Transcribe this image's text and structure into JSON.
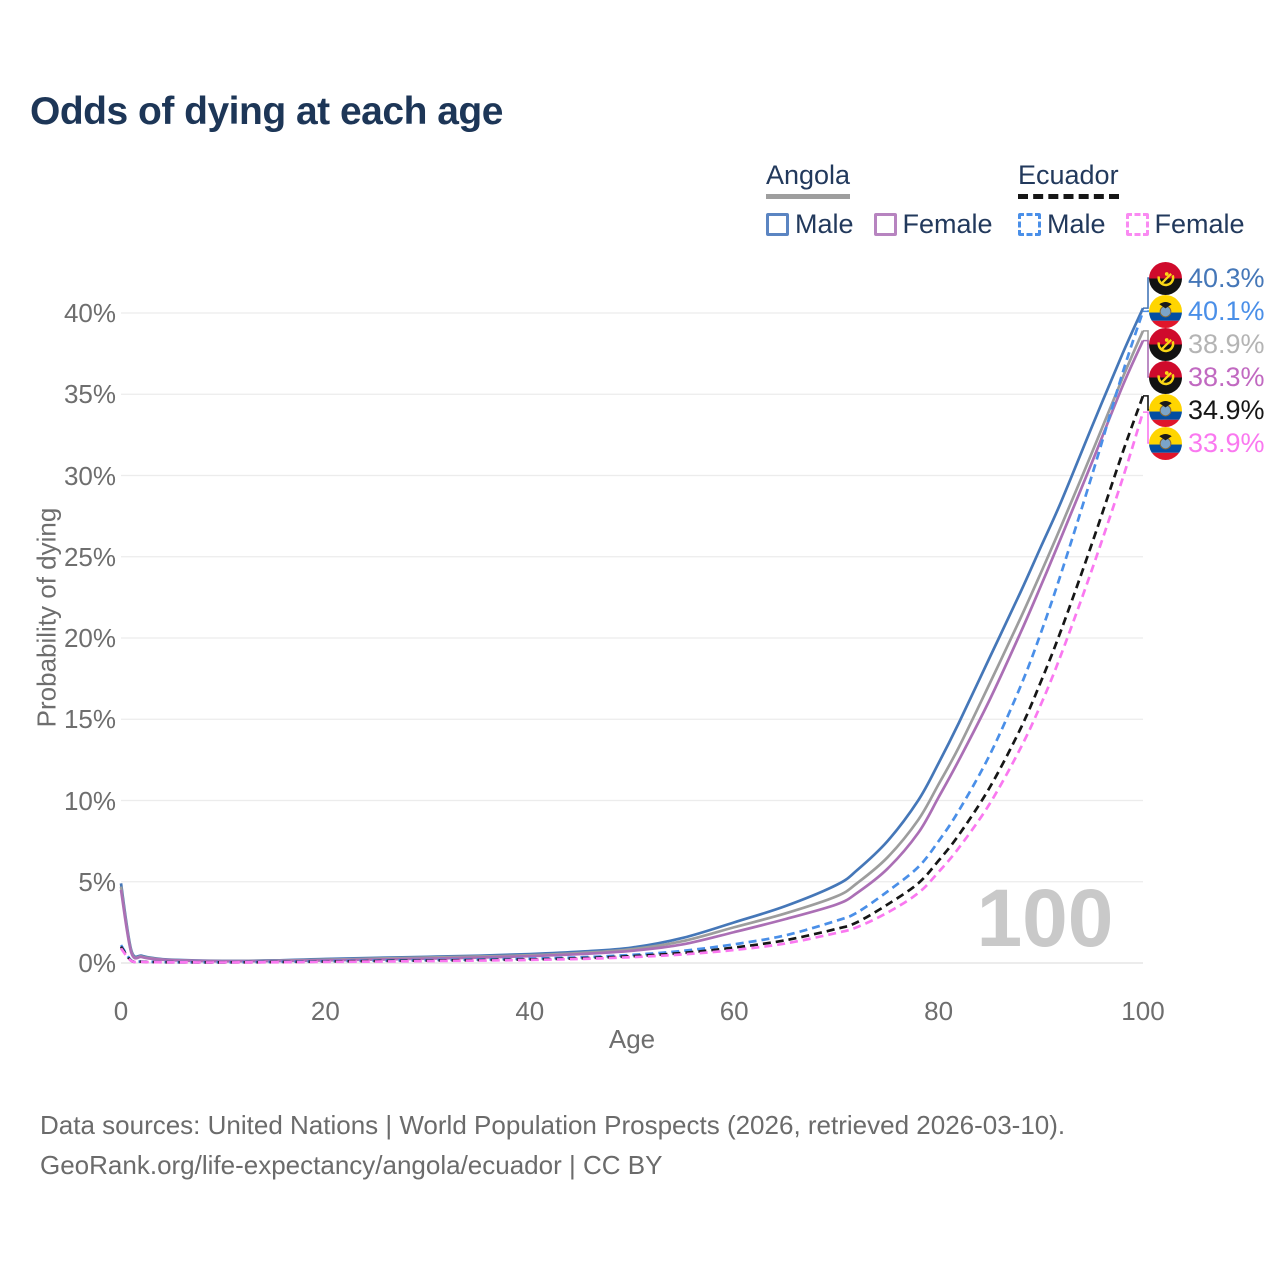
{
  "title": "Odds of dying at each age",
  "legend": {
    "groups": [
      {
        "label": "Angola",
        "line_style": "solid",
        "underline_color": "#9e9e9e",
        "items": [
          {
            "label": "Male",
            "color": "#4577b8"
          },
          {
            "label": "Female",
            "color": "#ab6fb5"
          }
        ]
      },
      {
        "label": "Ecuador",
        "line_style": "dashed",
        "underline_color": "#161616",
        "items": [
          {
            "label": "Male",
            "color": "#4a8fe8"
          },
          {
            "label": "Female",
            "color": "#fa78f0"
          }
        ]
      }
    ]
  },
  "axes": {
    "x": {
      "label": "Age",
      "ticks": [
        0,
        20,
        40,
        60,
        80,
        100
      ],
      "range": [
        0,
        100
      ]
    },
    "y": {
      "label": "Probability of dying",
      "ticks": [
        "0%",
        "5%",
        "10%",
        "15%",
        "20%",
        "25%",
        "30%",
        "35%",
        "40%"
      ],
      "tick_values": [
        0,
        5,
        10,
        15,
        20,
        25,
        30,
        35,
        40
      ],
      "range": [
        0,
        43
      ],
      "grid": true
    }
  },
  "watermark": "100",
  "footer": {
    "line1": "Data sources: United Nations | World Population Prospects (2026, retrieved 2026-03-10).",
    "line2": "GeoRank.org/life-expectancy/angola/ecuador | CC BY"
  },
  "chart_data": {
    "type": "line",
    "title": "Odds of dying at each age",
    "xlabel": "Age",
    "ylabel": "Probability of dying",
    "xlim": [
      0,
      100
    ],
    "ylim": [
      0,
      43
    ],
    "x": [
      0,
      1,
      2,
      3,
      5,
      10,
      15,
      20,
      25,
      30,
      35,
      40,
      45,
      50,
      55,
      60,
      65,
      70,
      72,
      75,
      78,
      80,
      82,
      85,
      88,
      90,
      92,
      95,
      98,
      100
    ],
    "series": [
      {
        "name": "Angola Male",
        "country": "angola",
        "sex": "male",
        "color": "#4577b8",
        "dash": false,
        "end_label": "40.3%",
        "end_label_color": "#4577b8",
        "values": [
          4.9,
          0.8,
          0.45,
          0.32,
          0.2,
          0.13,
          0.16,
          0.25,
          0.32,
          0.38,
          0.45,
          0.55,
          0.7,
          0.95,
          1.55,
          2.5,
          3.5,
          4.8,
          5.7,
          7.5,
          10.0,
          12.3,
          14.8,
          18.8,
          22.8,
          25.6,
          28.4,
          33.0,
          37.5,
          40.3
        ]
      },
      {
        "name": "Ecuador Male",
        "country": "ecuador",
        "sex": "male",
        "color": "#4a8fe8",
        "dash": true,
        "end_label": "40.1%",
        "end_label_color": "#4a8fe8",
        "values": [
          1.1,
          0.16,
          0.09,
          0.07,
          0.05,
          0.045,
          0.07,
          0.11,
          0.15,
          0.18,
          0.22,
          0.27,
          0.35,
          0.5,
          0.75,
          1.15,
          1.7,
          2.6,
          3.1,
          4.4,
          5.9,
          7.5,
          9.4,
          12.8,
          17.0,
          20.3,
          24.0,
          30.0,
          36.3,
          40.1
        ]
      },
      {
        "name": "Angola Both sexes",
        "country": "angola",
        "sex": "all",
        "color": "#9d9d9d",
        "dash": false,
        "end_label": "38.9%",
        "end_label_color": "#b4b4b4",
        "values": [
          4.7,
          0.72,
          0.4,
          0.29,
          0.18,
          0.12,
          0.14,
          0.2,
          0.27,
          0.33,
          0.4,
          0.48,
          0.62,
          0.85,
          1.35,
          2.2,
          3.05,
          4.1,
          4.9,
          6.5,
          8.8,
          11.0,
          13.3,
          17.2,
          21.2,
          24.0,
          26.9,
          31.4,
          36.0,
          38.9
        ]
      },
      {
        "name": "Angola Female",
        "country": "angola",
        "sex": "female",
        "color": "#ab6fb5",
        "dash": false,
        "end_label": "38.3%",
        "end_label_color": "#c169c1",
        "values": [
          4.5,
          0.65,
          0.37,
          0.26,
          0.17,
          0.11,
          0.12,
          0.16,
          0.21,
          0.27,
          0.33,
          0.42,
          0.55,
          0.75,
          1.15,
          1.9,
          2.7,
          3.6,
          4.3,
          5.8,
          8.0,
          10.2,
          12.5,
          16.2,
          20.3,
          23.2,
          26.2,
          30.8,
          35.5,
          38.3
        ]
      },
      {
        "name": "Ecuador Both sexes",
        "country": "ecuador",
        "sex": "all",
        "color": "#161616",
        "dash": true,
        "end_label": "34.9%",
        "end_label_color": "#161616",
        "values": [
          1.0,
          0.14,
          0.08,
          0.06,
          0.045,
          0.04,
          0.055,
          0.09,
          0.12,
          0.15,
          0.18,
          0.22,
          0.29,
          0.42,
          0.62,
          0.95,
          1.4,
          2.1,
          2.5,
          3.6,
          4.9,
          6.3,
          7.9,
          10.8,
          14.4,
          17.3,
          20.5,
          25.8,
          31.4,
          34.9
        ]
      },
      {
        "name": "Ecuador Female",
        "country": "ecuador",
        "sex": "female",
        "color": "#fa78f0",
        "dash": true,
        "end_label": "33.9%",
        "end_label_color": "#fa78f0",
        "values": [
          0.9,
          0.13,
          0.07,
          0.055,
          0.04,
          0.035,
          0.045,
          0.07,
          0.09,
          0.12,
          0.15,
          0.19,
          0.25,
          0.36,
          0.53,
          0.8,
          1.2,
          1.85,
          2.2,
          3.1,
          4.3,
          5.6,
          7.1,
          9.8,
          13.2,
          15.9,
          19.0,
          24.2,
          29.8,
          33.9
        ]
      }
    ],
    "legend_position": "top-right",
    "grid": "horizontal"
  }
}
